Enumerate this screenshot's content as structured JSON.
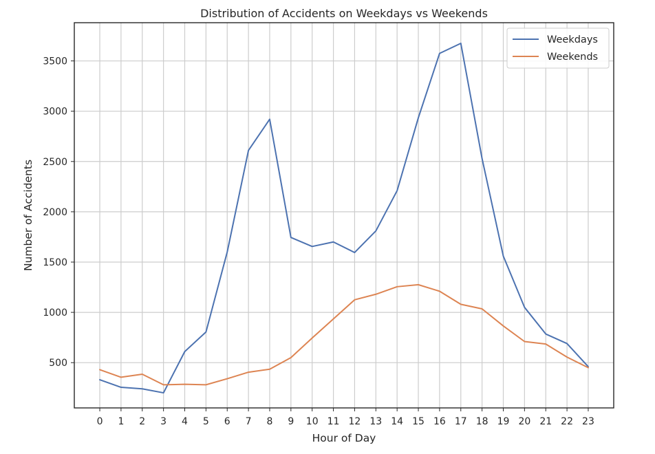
{
  "chart_data": {
    "type": "line",
    "title": "Distribution of Accidents on Weekdays vs Weekends",
    "xlabel": "Hour of Day",
    "ylabel": "Number of Accidents",
    "x": [
      0,
      1,
      2,
      3,
      4,
      5,
      6,
      7,
      8,
      9,
      10,
      11,
      12,
      13,
      14,
      15,
      16,
      17,
      18,
      19,
      20,
      21,
      22,
      23
    ],
    "xlim": [
      -1.2,
      24.2
    ],
    "ylim": [
      50,
      3880
    ],
    "yticks": [
      500,
      1000,
      1500,
      2000,
      2500,
      3000,
      3500
    ],
    "grid": true,
    "legend_position": "top-right",
    "series": [
      {
        "name": "Weekdays",
        "color": "#4c72b0",
        "values": [
          330,
          255,
          240,
          200,
          610,
          805,
          1600,
          2610,
          2920,
          1745,
          1655,
          1700,
          1595,
          1810,
          2210,
          2935,
          3575,
          3675,
          2530,
          1560,
          1050,
          785,
          690,
          460
        ]
      },
      {
        "name": "Weekends",
        "color": "#dd8452",
        "values": [
          430,
          355,
          385,
          280,
          285,
          280,
          340,
          405,
          435,
          550,
          745,
          935,
          1125,
          1180,
          1255,
          1275,
          1210,
          1080,
          1035,
          865,
          710,
          685,
          555,
          450
        ]
      }
    ]
  }
}
